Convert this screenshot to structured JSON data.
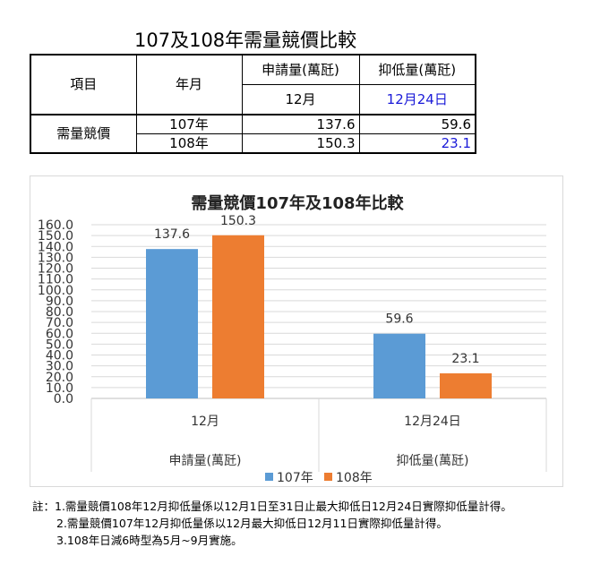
{
  "table": {
    "title": "107及108年需量競價比較",
    "header": {
      "item": "項目",
      "month": "年月",
      "col1": "申請量(萬瓩)",
      "col2": "抑低量(萬瓩)",
      "col1_sub": "12月",
      "col2_sub": "12月24日"
    },
    "row_label": "需量競價",
    "rows": [
      {
        "year": "107年",
        "apply": "137.6",
        "reduce": "59.6"
      },
      {
        "year": "108年",
        "apply": "150.3",
        "reduce": "23.1"
      }
    ]
  },
  "chart_data": {
    "type": "bar",
    "title": "需量競價107年及108年比較",
    "groups": [
      {
        "category": "12月",
        "group_label": "申請量(萬瓩)"
      },
      {
        "category": "12月24日",
        "group_label": "抑低量(萬瓩)"
      }
    ],
    "series": [
      {
        "name": "107年",
        "color": "#5b9bd5",
        "values": [
          137.6,
          59.6
        ],
        "labels": [
          "137.6",
          "59.6"
        ]
      },
      {
        "name": "108年",
        "color": "#ed7d31",
        "values": [
          150.3,
          23.1
        ],
        "labels": [
          "150.3",
          "23.1"
        ]
      }
    ],
    "ylim": [
      0,
      160
    ],
    "ytick_labels": [
      "0.0",
      "10.0",
      "20.0",
      "30.0",
      "40.0",
      "50.0",
      "60.0",
      "70.0",
      "80.0",
      "90.0",
      "100.0",
      "110.0",
      "120.0",
      "130.0",
      "140.0",
      "150.0",
      "160.0"
    ],
    "grid": true,
    "legend": "bottom"
  },
  "notes": [
    "註：1.需量競價108年12月抑低量係以12月1日至31日止最大抑低日12月24日實際抑低量計得。",
    "2.需量競價107年12月抑低量係以12月最大抑低日12月11日實際抑低量計得。",
    "3.108年日減6時型為5月~9月實施。"
  ]
}
